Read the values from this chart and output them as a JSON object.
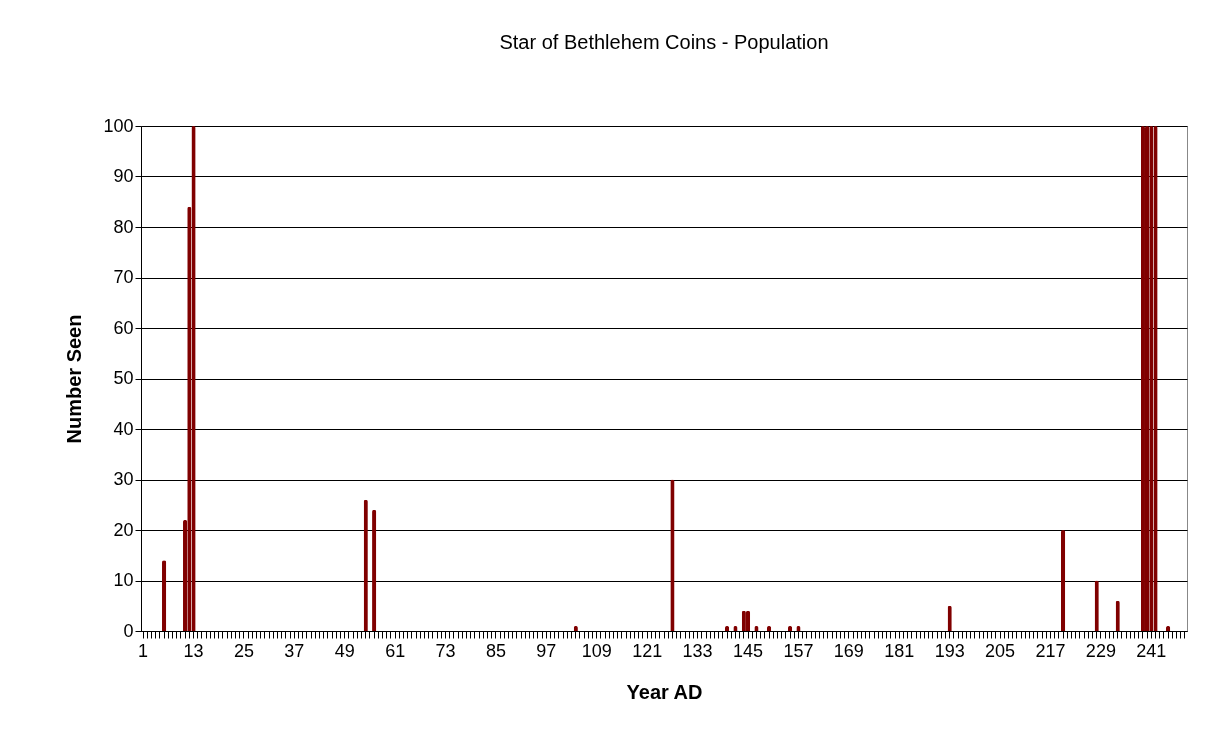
{
  "chart_data": {
    "type": "bar",
    "title": "Star of Bethlehem Coins - Population",
    "xlabel": "Year AD",
    "ylabel": "Number Seen",
    "categories": [
      "1",
      null,
      null,
      null,
      null,
      null,
      null,
      null,
      null,
      null,
      null,
      null,
      "13",
      null,
      null,
      null,
      null,
      null,
      null,
      null,
      null,
      null,
      null,
      null,
      "25",
      null,
      null,
      null,
      null,
      null,
      null,
      null,
      null,
      null,
      null,
      null,
      "37",
      null,
      null,
      null,
      null,
      null,
      null,
      null,
      null,
      null,
      null,
      null,
      "49",
      null,
      null,
      null,
      null,
      null,
      null,
      null,
      null,
      null,
      null,
      null,
      "61",
      null,
      null,
      null,
      null,
      null,
      null,
      null,
      null,
      null,
      null,
      null,
      "73",
      null,
      null,
      null,
      null,
      null,
      null,
      null,
      null,
      null,
      null,
      null,
      "85",
      null,
      null,
      null,
      null,
      null,
      null,
      null,
      null,
      null,
      null,
      null,
      "97",
      null,
      null,
      null,
      null,
      null,
      null,
      null,
      null,
      null,
      null,
      null,
      "109",
      null,
      null,
      null,
      null,
      null,
      null,
      null,
      null,
      null,
      null,
      null,
      "121",
      null,
      null,
      null,
      null,
      null,
      null,
      null,
      null,
      null,
      null,
      null,
      "133",
      null,
      null,
      null,
      null,
      null,
      null,
      null,
      null,
      null,
      null,
      null,
      "145",
      null,
      null,
      null,
      null,
      null,
      null,
      null,
      null,
      null,
      null,
      null,
      "157",
      null,
      null,
      null,
      null,
      null,
      null,
      null,
      null,
      null,
      null,
      null,
      "169",
      null,
      null,
      null,
      null,
      null,
      null,
      null,
      null,
      null,
      null,
      null,
      "181",
      null,
      null,
      null,
      null,
      null,
      null,
      null,
      null,
      null,
      null,
      null,
      "193",
      null,
      null,
      null,
      null,
      null,
      null,
      null,
      null,
      null,
      null,
      null,
      "205",
      null,
      null,
      null,
      null,
      null,
      null,
      null,
      null,
      null,
      null,
      null,
      "217",
      null,
      null,
      null,
      null,
      null,
      null,
      null,
      null,
      null,
      null,
      null,
      "229",
      null,
      null,
      null,
      null,
      null,
      null,
      null,
      null,
      null,
      null,
      null,
      "241",
      null,
      null,
      null,
      null,
      null,
      null,
      null,
      null
    ],
    "values": [
      0,
      0,
      0,
      0,
      0,
      14,
      0,
      0,
      0,
      0,
      22,
      84,
      100,
      0,
      0,
      0,
      0,
      0,
      0,
      0,
      0,
      0,
      0,
      0,
      0,
      0,
      0,
      0,
      0,
      0,
      0,
      0,
      0,
      0,
      0,
      0,
      0,
      0,
      0,
      0,
      0,
      0,
      0,
      0,
      0,
      0,
      0,
      0,
      0,
      0,
      0,
      0,
      0,
      26,
      0,
      24,
      0,
      0,
      0,
      0,
      0,
      0,
      0,
      0,
      0,
      0,
      0,
      0,
      0,
      0,
      0,
      0,
      0,
      0,
      0,
      0,
      0,
      0,
      0,
      0,
      0,
      0,
      0,
      0,
      0,
      0,
      0,
      0,
      0,
      0,
      0,
      0,
      0,
      0,
      0,
      0,
      0,
      0,
      0,
      0,
      0,
      0,
      0,
      1,
      0,
      0,
      0,
      0,
      0,
      0,
      0,
      0,
      0,
      0,
      0,
      0,
      0,
      0,
      0,
      0,
      0,
      0,
      0,
      0,
      0,
      0,
      30,
      0,
      0,
      0,
      0,
      0,
      0,
      0,
      0,
      0,
      0,
      0,
      0,
      1,
      0,
      1,
      0,
      4,
      4,
      0,
      1,
      0,
      0,
      1,
      0,
      0,
      0,
      0,
      1,
      0,
      1,
      0,
      0,
      0,
      0,
      0,
      0,
      0,
      0,
      0,
      0,
      0,
      0,
      0,
      0,
      0,
      0,
      0,
      0,
      0,
      0,
      0,
      0,
      0,
      0,
      0,
      0,
      0,
      0,
      0,
      0,
      0,
      0,
      0,
      0,
      0,
      5,
      0,
      0,
      0,
      0,
      0,
      0,
      0,
      0,
      0,
      0,
      0,
      0,
      0,
      0,
      0,
      0,
      0,
      0,
      0,
      0,
      0,
      0,
      0,
      0,
      0,
      0,
      20,
      0,
      0,
      0,
      0,
      0,
      0,
      0,
      10,
      0,
      0,
      0,
      0,
      6,
      0,
      0,
      0,
      0,
      0,
      100,
      100,
      100,
      100,
      0,
      0,
      1,
      0,
      0,
      0,
      0
    ],
    "color": "#800000",
    "ylim": [
      0,
      100
    ],
    "yticks": [
      0,
      10,
      20,
      30,
      40,
      50,
      60,
      70,
      80,
      90,
      100
    ],
    "grid": "y"
  }
}
